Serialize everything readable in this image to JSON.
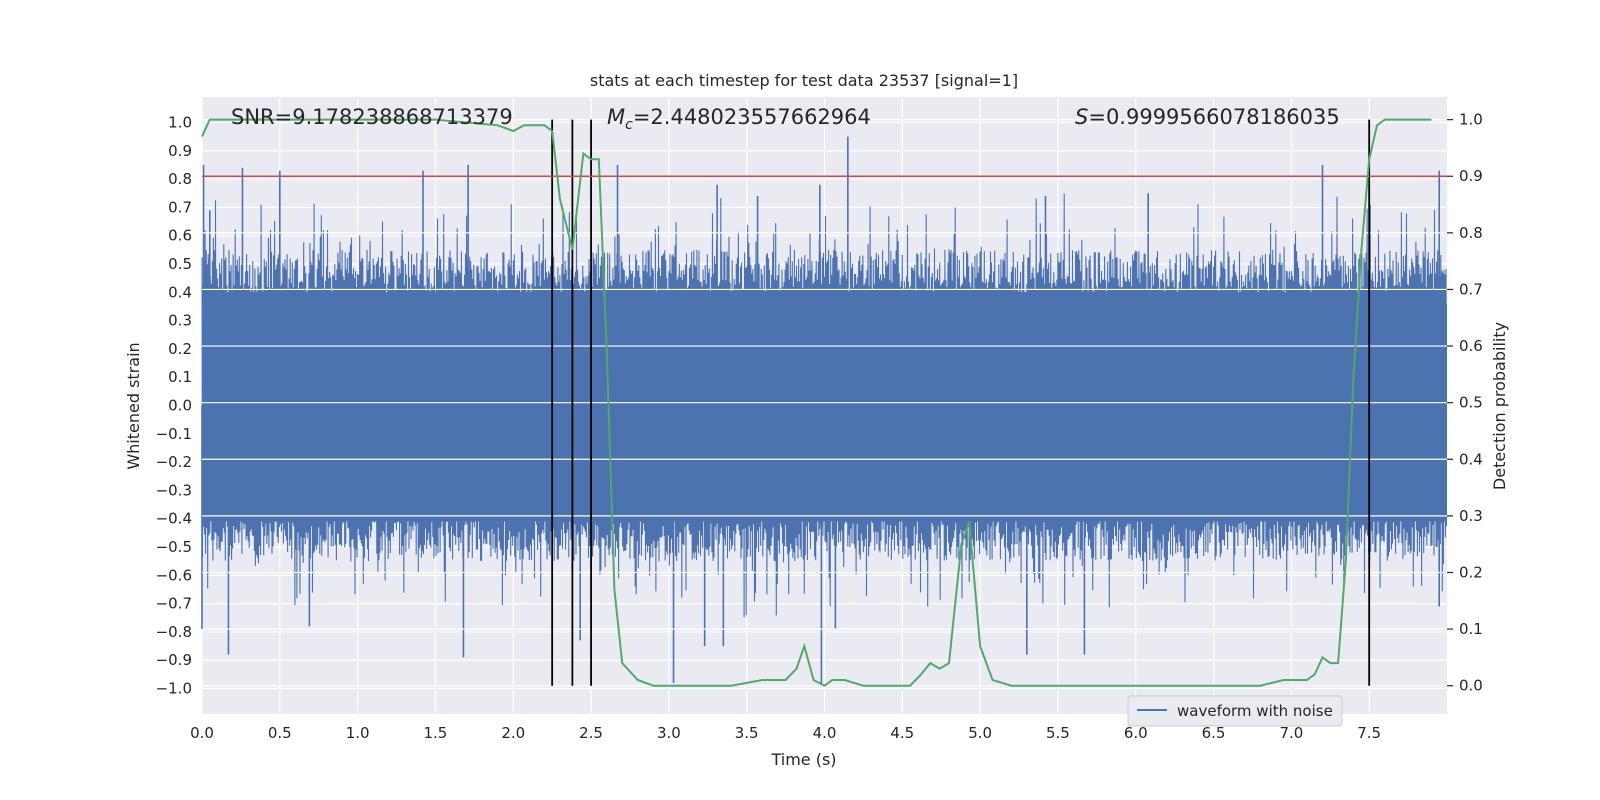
{
  "chart_data": {
    "type": "line",
    "title": "stats at each timestep for test data 23537 [signal=1]",
    "xlabel": "Time (s)",
    "ylabel": "Whitened strain",
    "y2label": "Detection probability",
    "xlim": [
      0.0,
      8.0
    ],
    "ylim": [
      -1.09,
      1.09
    ],
    "y2lim": [
      -0.05,
      1.04
    ],
    "x_ticks": [
      0.0,
      0.5,
      1.0,
      1.5,
      2.0,
      2.5,
      3.0,
      3.5,
      4.0,
      4.5,
      5.0,
      5.5,
      6.0,
      6.5,
      7.0,
      7.5
    ],
    "x_tick_labels": [
      "0.0",
      "0.5",
      "1.0",
      "1.5",
      "2.0",
      "2.5",
      "3.0",
      "3.5",
      "4.0",
      "4.5",
      "5.0",
      "5.5",
      "6.0",
      "6.5",
      "7.0",
      "7.5"
    ],
    "y_ticks": [
      1.0,
      0.9,
      0.8,
      0.7,
      0.6,
      0.5,
      0.4,
      0.3,
      0.2,
      0.1,
      0.0,
      -0.1,
      -0.2,
      -0.3,
      -0.4,
      -0.5,
      -0.6,
      -0.7,
      -0.8,
      -0.9,
      -1.0
    ],
    "y_tick_labels": [
      "1.0",
      "0.9",
      "0.8",
      "0.7",
      "0.6",
      "0.5",
      "0.4",
      "0.3",
      "0.2",
      "0.1",
      "0.0",
      "−0.1",
      "−0.2",
      "−0.3",
      "−0.4",
      "−0.5",
      "−0.6",
      "−0.7",
      "−0.8",
      "−0.9",
      "−1.0"
    ],
    "y2_ticks": [
      1.0,
      0.9,
      0.8,
      0.7,
      0.6,
      0.5,
      0.4,
      0.3,
      0.2,
      0.1,
      0.0
    ],
    "y2_tick_labels": [
      "1.0",
      "0.9",
      "0.8",
      "0.7",
      "0.6",
      "0.5",
      "0.4",
      "0.3",
      "0.2",
      "0.1",
      "0.0"
    ],
    "grid": true,
    "legend": {
      "placement": "lower-right",
      "entries": [
        "waveform with noise"
      ]
    },
    "annotations": {
      "snr": "SNR=9.178238868713379",
      "mc_symbol": "M",
      "mc_sub": "c",
      "mc_value": "=2.448023557662964",
      "s_symbol": "S",
      "s_value": "=0.9999566078186035"
    },
    "series": [
      {
        "name": "waveform with noise",
        "axis": "left",
        "color": "#4c72b0",
        "style": "noise",
        "envelope_typical": 0.4,
        "spikes": [
          [
            0.01,
            0.85
          ],
          [
            0.05,
            0.69
          ],
          [
            0.26,
            0.84
          ],
          [
            0.5,
            0.83
          ],
          [
            1.42,
            0.83
          ],
          [
            1.71,
            0.85
          ],
          [
            2.67,
            0.85
          ],
          [
            3.31,
            0.78
          ],
          [
            3.57,
            0.74
          ],
          [
            3.97,
            0.78
          ],
          [
            4.15,
            0.95
          ],
          [
            5.42,
            0.74
          ],
          [
            6.08,
            0.75
          ],
          [
            7.2,
            0.85
          ],
          [
            7.95,
            0.83
          ],
          [
            0.0,
            -0.79
          ],
          [
            0.17,
            -0.88
          ],
          [
            0.69,
            -0.78
          ],
          [
            1.68,
            -0.89
          ],
          [
            2.43,
            -0.83
          ],
          [
            3.03,
            -0.98
          ],
          [
            3.23,
            -0.85
          ],
          [
            3.35,
            -0.85
          ],
          [
            3.98,
            -0.99
          ],
          [
            4.07,
            -0.79
          ],
          [
            5.3,
            -0.88
          ],
          [
            5.67,
            -0.88
          ],
          [
            7.95,
            -0.71
          ]
        ]
      },
      {
        "name": "",
        "axis": "right",
        "color": "#55a868",
        "x": [
          0.0,
          0.05,
          0.1,
          0.3,
          0.5,
          1.0,
          1.5,
          1.9,
          2.0,
          2.07,
          2.15,
          2.2,
          2.25,
          2.3,
          2.38,
          2.45,
          2.5,
          2.55,
          2.6,
          2.65,
          2.7,
          2.8,
          2.9,
          3.0,
          3.2,
          3.4,
          3.6,
          3.75,
          3.82,
          3.87,
          3.93,
          4.0,
          4.05,
          4.13,
          4.25,
          4.55,
          4.62,
          4.68,
          4.74,
          4.8,
          4.88,
          4.93,
          5.0,
          5.08,
          5.2,
          5.5,
          6.0,
          6.5,
          6.8,
          6.95,
          7.1,
          7.15,
          7.2,
          7.25,
          7.3,
          7.35,
          7.4,
          7.45,
          7.5,
          7.55,
          7.6,
          7.7,
          7.8,
          7.9
        ],
        "y": [
          0.97,
          1.0,
          1.0,
          1.0,
          1.0,
          1.0,
          1.0,
          0.99,
          0.98,
          0.99,
          0.99,
          0.99,
          0.98,
          0.86,
          0.77,
          0.94,
          0.93,
          0.93,
          0.6,
          0.17,
          0.04,
          0.01,
          0.0,
          0.0,
          0.0,
          0.0,
          0.01,
          0.01,
          0.03,
          0.07,
          0.01,
          0.0,
          0.01,
          0.01,
          0.0,
          0.0,
          0.02,
          0.04,
          0.03,
          0.04,
          0.25,
          0.29,
          0.07,
          0.01,
          0.0,
          0.0,
          0.0,
          0.0,
          0.0,
          0.01,
          0.01,
          0.02,
          0.05,
          0.04,
          0.04,
          0.22,
          0.55,
          0.77,
          0.93,
          0.99,
          1.0,
          1.0,
          1.0,
          1.0
        ]
      },
      {
        "name": "",
        "axis": "right",
        "color": "#c44e52",
        "type": "hline",
        "y": 0.9
      }
    ],
    "vlines": [
      2.25,
      2.38,
      2.5,
      7.5
    ],
    "vline_color": "#000000",
    "background": "#eaeaf2",
    "grid_color": "#ffffff"
  }
}
